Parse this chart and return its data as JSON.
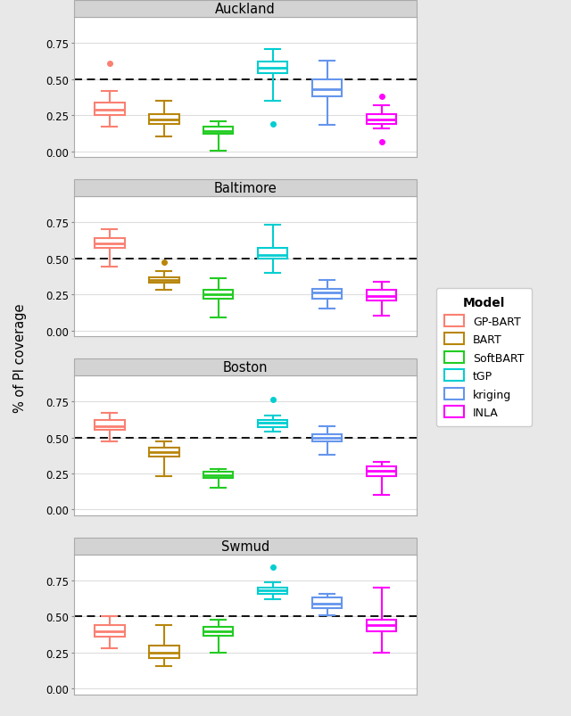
{
  "datasets": [
    "Auckland",
    "Baltimore",
    "Boston",
    "Swmud"
  ],
  "models": [
    "GP-BART",
    "BART",
    "SoftBART",
    "tGP",
    "kriging",
    "INLA"
  ],
  "colors": {
    "GP-BART": "#FA8072",
    "BART": "#B8860B",
    "SoftBART": "#22CC22",
    "tGP": "#00CED1",
    "kriging": "#6495ED",
    "INLA": "#FF00FF"
  },
  "box_data": {
    "Auckland": {
      "GP-BART": {
        "whislo": 0.17,
        "q1": 0.25,
        "med": 0.29,
        "q3": 0.34,
        "whishi": 0.42,
        "fliers": [
          0.61
        ]
      },
      "BART": {
        "whislo": 0.1,
        "q1": 0.19,
        "med": 0.22,
        "q3": 0.26,
        "whishi": 0.35,
        "fliers": []
      },
      "SoftBART": {
        "whislo": 0.005,
        "q1": 0.12,
        "med": 0.14,
        "q3": 0.17,
        "whishi": 0.21,
        "fliers": []
      },
      "tGP": {
        "whislo": 0.35,
        "q1": 0.54,
        "med": 0.58,
        "q3": 0.62,
        "whishi": 0.71,
        "fliers": [
          0.19
        ]
      },
      "kriging": {
        "whislo": 0.18,
        "q1": 0.38,
        "med": 0.43,
        "q3": 0.5,
        "whishi": 0.63,
        "fliers": []
      },
      "INLA": {
        "whislo": 0.16,
        "q1": 0.19,
        "med": 0.22,
        "q3": 0.26,
        "whishi": 0.32,
        "fliers": [
          0.38,
          0.065
        ]
      }
    },
    "Baltimore": {
      "GP-BART": {
        "whislo": 0.44,
        "q1": 0.57,
        "med": 0.6,
        "q3": 0.64,
        "whishi": 0.7,
        "fliers": []
      },
      "BART": {
        "whislo": 0.28,
        "q1": 0.33,
        "med": 0.35,
        "q3": 0.37,
        "whishi": 0.41,
        "fliers": [
          0.47
        ]
      },
      "SoftBART": {
        "whislo": 0.09,
        "q1": 0.22,
        "med": 0.25,
        "q3": 0.28,
        "whishi": 0.36,
        "fliers": []
      },
      "tGP": {
        "whislo": 0.4,
        "q1": 0.5,
        "med": 0.52,
        "q3": 0.57,
        "whishi": 0.73,
        "fliers": []
      },
      "kriging": {
        "whislo": 0.15,
        "q1": 0.22,
        "med": 0.26,
        "q3": 0.29,
        "whishi": 0.35,
        "fliers": []
      },
      "INLA": {
        "whislo": 0.1,
        "q1": 0.21,
        "med": 0.24,
        "q3": 0.28,
        "whishi": 0.34,
        "fliers": []
      }
    },
    "Boston": {
      "GP-BART": {
        "whislo": 0.47,
        "q1": 0.55,
        "med": 0.58,
        "q3": 0.62,
        "whishi": 0.67,
        "fliers": []
      },
      "BART": {
        "whislo": 0.23,
        "q1": 0.37,
        "med": 0.4,
        "q3": 0.43,
        "whishi": 0.47,
        "fliers": []
      },
      "SoftBART": {
        "whislo": 0.15,
        "q1": 0.22,
        "med": 0.24,
        "q3": 0.26,
        "whishi": 0.28,
        "fliers": []
      },
      "tGP": {
        "whislo": 0.54,
        "q1": 0.57,
        "med": 0.6,
        "q3": 0.62,
        "whishi": 0.65,
        "fliers": [
          0.76
        ]
      },
      "kriging": {
        "whislo": 0.38,
        "q1": 0.47,
        "med": 0.5,
        "q3": 0.52,
        "whishi": 0.58,
        "fliers": []
      },
      "INLA": {
        "whislo": 0.1,
        "q1": 0.23,
        "med": 0.27,
        "q3": 0.3,
        "whishi": 0.33,
        "fliers": []
      }
    },
    "Swmud": {
      "GP-BART": {
        "whislo": 0.28,
        "q1": 0.36,
        "med": 0.4,
        "q3": 0.44,
        "whishi": 0.5,
        "fliers": []
      },
      "BART": {
        "whislo": 0.16,
        "q1": 0.21,
        "med": 0.25,
        "q3": 0.3,
        "whishi": 0.44,
        "fliers": []
      },
      "SoftBART": {
        "whislo": 0.25,
        "q1": 0.37,
        "med": 0.4,
        "q3": 0.43,
        "whishi": 0.48,
        "fliers": []
      },
      "tGP": {
        "whislo": 0.62,
        "q1": 0.66,
        "med": 0.68,
        "q3": 0.7,
        "whishi": 0.74,
        "fliers": [
          0.84
        ]
      },
      "kriging": {
        "whislo": 0.51,
        "q1": 0.56,
        "med": 0.59,
        "q3": 0.63,
        "whishi": 0.66,
        "fliers": []
      },
      "INLA": {
        "whislo": 0.25,
        "q1": 0.4,
        "med": 0.44,
        "q3": 0.48,
        "whishi": 0.7,
        "fliers": []
      }
    }
  },
  "ylabel": "% of PI coverage",
  "dashed_line_y": 0.5,
  "ylim": [
    -0.04,
    0.93
  ],
  "yticks": [
    0.0,
    0.25,
    0.5,
    0.75
  ],
  "ytick_labels": [
    "0.00",
    "0.25",
    "0.50",
    "0.75"
  ],
  "fig_bg": "#E8E8E8",
  "panel_bg": "#FFFFFF",
  "strip_bg": "#D3D3D3",
  "grid_color": "#DDDDDD",
  "box_width": 0.55,
  "x_positions": [
    1,
    2,
    3,
    4,
    5,
    6
  ],
  "x_lim": [
    0.35,
    6.65
  ]
}
